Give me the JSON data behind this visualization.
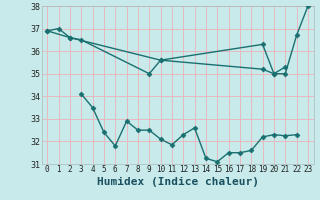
{
  "bg_color": "#c8eaea",
  "grid_color": "#e8b8c0",
  "line_color": "#1a7070",
  "line_width": 1.0,
  "marker": "D",
  "marker_size": 2.5,
  "xlabel": "Humidex (Indice chaleur)",
  "xlabel_fontsize": 8,
  "xlabel_color": "#1a5060",
  "ylim": [
    31,
    38
  ],
  "xlim": [
    -0.5,
    23.5
  ],
  "yticks": [
    31,
    32,
    33,
    34,
    35,
    36,
    37,
    38
  ],
  "xticks": [
    0,
    1,
    2,
    3,
    4,
    5,
    6,
    7,
    8,
    9,
    10,
    11,
    12,
    13,
    14,
    15,
    16,
    17,
    18,
    19,
    20,
    21,
    22,
    23
  ],
  "series": [
    {
      "x": [
        0,
        1,
        2,
        10,
        19,
        20,
        21,
        22,
        23
      ],
      "y": [
        36.9,
        37.0,
        36.6,
        35.6,
        36.3,
        35.0,
        35.0,
        36.7,
        38.0
      ]
    },
    {
      "x": [
        0,
        2,
        3,
        9,
        10,
        19,
        20,
        21
      ],
      "y": [
        36.9,
        36.6,
        36.5,
        35.0,
        35.6,
        35.2,
        35.0,
        35.3
      ]
    },
    {
      "x": [
        3,
        4,
        5,
        6,
        7,
        8,
        9,
        10,
        11,
        12,
        13,
        14,
        15,
        16,
        17,
        18,
        19,
        20,
        21,
        22
      ],
      "y": [
        34.1,
        33.5,
        32.4,
        31.8,
        32.9,
        32.5,
        32.5,
        32.1,
        31.85,
        32.3,
        32.6,
        31.25,
        31.1,
        31.5,
        31.5,
        31.6,
        32.2,
        32.3,
        32.25,
        32.3
      ]
    }
  ]
}
